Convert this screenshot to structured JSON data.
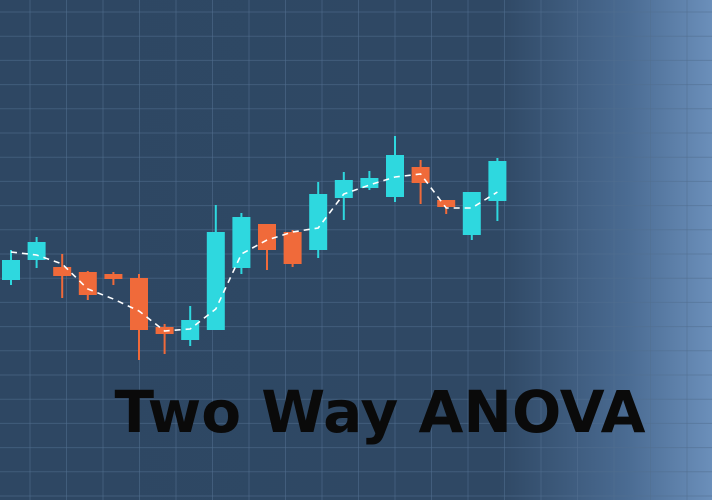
{
  "title": "Two Way ANOVA",
  "colors": {
    "background": "#2e4763",
    "grid": "#52708f",
    "up": "#2ed8df",
    "down": "#f06a3a",
    "trend": "#ffffff"
  },
  "chart_data": {
    "type": "candlestick",
    "grid": true,
    "ylim": [
      0,
      500
    ],
    "series": [
      {
        "name": "",
        "values": [
          {
            "open": 220,
            "close": 240,
            "high": 250,
            "low": 215
          },
          {
            "open": 240,
            "close": 258,
            "high": 263,
            "low": 232
          },
          {
            "open": 233,
            "close": 224,
            "high": 246,
            "low": 202
          },
          {
            "open": 228,
            "close": 205,
            "high": 229,
            "low": 200
          },
          {
            "open": 226,
            "close": 221,
            "high": 228,
            "low": 215
          },
          {
            "open": 222,
            "close": 170,
            "high": 226,
            "low": 140
          },
          {
            "open": 173,
            "close": 166,
            "high": 176,
            "low": 146
          },
          {
            "open": 160,
            "close": 180,
            "high": 194,
            "low": 154
          },
          {
            "open": 170,
            "close": 268,
            "high": 295,
            "low": 170
          },
          {
            "open": 232,
            "close": 283,
            "high": 287,
            "low": 226
          },
          {
            "open": 276,
            "close": 250,
            "high": 276,
            "low": 230
          },
          {
            "open": 268,
            "close": 236,
            "high": 270,
            "low": 233
          },
          {
            "open": 250,
            "close": 306,
            "high": 318,
            "low": 242
          },
          {
            "open": 302,
            "close": 320,
            "high": 328,
            "low": 280
          },
          {
            "open": 312,
            "close": 322,
            "high": 329,
            "low": 310
          },
          {
            "open": 303,
            "close": 345,
            "high": 364,
            "low": 298
          },
          {
            "open": 333,
            "close": 317,
            "high": 340,
            "low": 296
          },
          {
            "open": 300,
            "close": 293,
            "high": 300,
            "low": 286
          },
          {
            "open": 265,
            "close": 308,
            "high": 308,
            "low": 260
          },
          {
            "open": 299,
            "close": 339,
            "high": 342,
            "low": 279
          }
        ]
      }
    ],
    "trend": [
      248,
      245,
      236,
      211,
      201,
      189,
      169,
      171,
      191,
      246,
      260,
      268,
      272,
      306,
      315,
      323,
      326,
      292,
      292,
      308
    ]
  }
}
